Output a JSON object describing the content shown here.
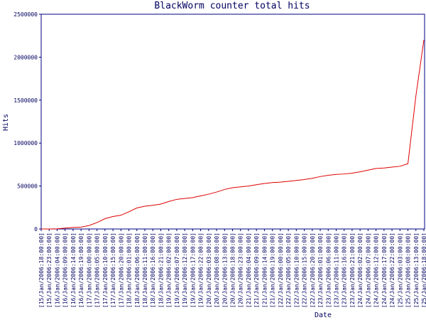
{
  "chart_data": {
    "type": "line",
    "title": "BlackWorm counter total hits",
    "x_label": "Date",
    "y_label": "Hits",
    "categories": [
      "[15/Jan/2006:18:00:00]",
      "[15/Jan/2006:23:00:00]",
      "[16/Jan/2006:04:00:00]",
      "[16/Jan/2006:09:00:00]",
      "[16/Jan/2006:14:00:00]",
      "[16/Jan/2006:19:00:00]",
      "[17/Jan/2006:00:00:00]",
      "[17/Jan/2006:05:00:00]",
      "[17/Jan/2006:10:00:00]",
      "[17/Jan/2006:15:00:00]",
      "[17/Jan/2006:20:00:00]",
      "[18/Jan/2006:01:00:00]",
      "[18/Jan/2006:06:00:00]",
      "[18/Jan/2006:11:00:00]",
      "[18/Jan/2006:16:00:00]",
      "[18/Jan/2006:21:00:00]",
      "[19/Jan/2006:02:00:00]",
      "[19/Jan/2006:07:00:00]",
      "[19/Jan/2006:12:00:00]",
      "[19/Jan/2006:17:00:00]",
      "[19/Jan/2006:22:00:00]",
      "[20/Jan/2006:03:00:00]",
      "[20/Jan/2006:08:00:00]",
      "[20/Jan/2006:13:00:00]",
      "[20/Jan/2006:18:00:00]",
      "[20/Jan/2006:23:00:00]",
      "[21/Jan/2006:04:00:00]",
      "[21/Jan/2006:09:00:00]",
      "[21/Jan/2006:14:00:00]",
      "[21/Jan/2006:19:00:00]",
      "[22/Jan/2006:00:00:00]",
      "[22/Jan/2006:05:00:00]",
      "[22/Jan/2006:10:00:00]",
      "[22/Jan/2006:15:00:00]",
      "[22/Jan/2006:20:00:00]",
      "[23/Jan/2006:01:00:00]",
      "[23/Jan/2006:06:00:00]",
      "[23/Jan/2006:11:00:00]",
      "[23/Jan/2006:16:00:00]",
      "[23/Jan/2006:21:00:00]",
      "[24/Jan/2006:02:00:00]",
      "[24/Jan/2006:07:00:00]",
      "[24/Jan/2006:12:00:00]",
      "[24/Jan/2006:17:00:00]",
      "[24/Jan/2006:22:00:00]",
      "[25/Jan/2006:03:00:00]",
      "[25/Jan/2006:08:00:00]",
      "[25/Jan/2006:13:00:00]",
      "[25/Jan/2006:18:00:00]"
    ],
    "values": [
      0,
      0,
      2000,
      10000,
      18000,
      22000,
      40000,
      75000,
      120000,
      145000,
      160000,
      200000,
      245000,
      265000,
      275000,
      290000,
      320000,
      345000,
      355000,
      365000,
      385000,
      405000,
      430000,
      460000,
      480000,
      490000,
      500000,
      515000,
      530000,
      540000,
      545000,
      555000,
      565000,
      575000,
      590000,
      610000,
      625000,
      635000,
      640000,
      650000,
      665000,
      685000,
      705000,
      710000,
      720000,
      730000,
      760000,
      1550000,
      2200000
    ],
    "color": "#e00000",
    "axis_color": "#000080",
    "ylim": [
      0,
      2500000
    ],
    "yticks": [
      0,
      500000,
      1000000,
      1500000,
      2000000,
      2500000
    ],
    "grid": false
  }
}
